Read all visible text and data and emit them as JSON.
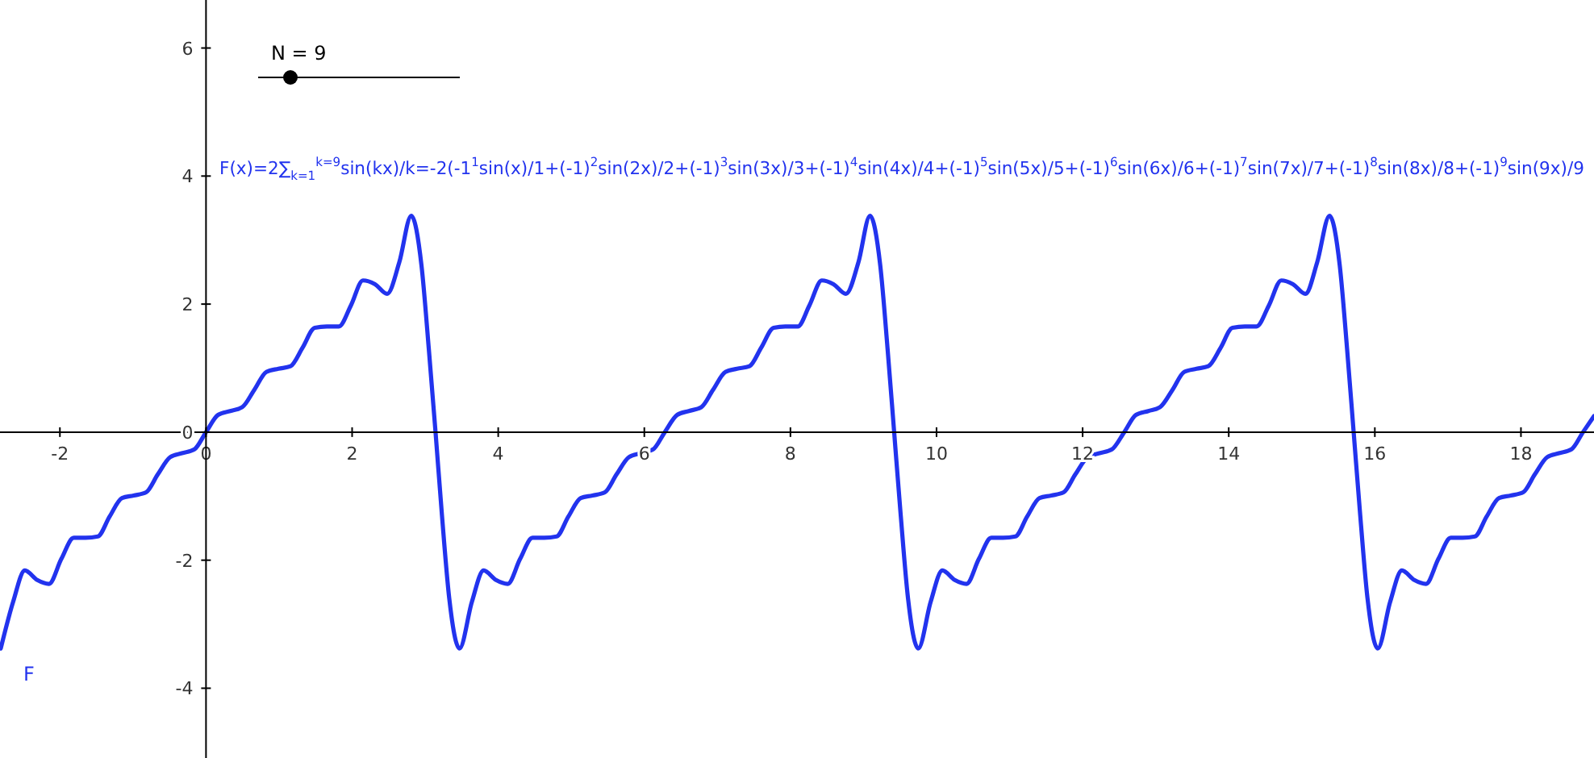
{
  "chart_data": {
    "type": "line",
    "xlim": [
      -2.82,
      19.0
    ],
    "ylim": [
      -5.09,
      6.75
    ],
    "xticks": [
      -2,
      0,
      2,
      4,
      6,
      8,
      10,
      12,
      14,
      16,
      18
    ],
    "yticks": [
      -4,
      -2,
      0,
      2,
      4,
      6
    ],
    "grid": false,
    "marker": "none",
    "line_style": "solid",
    "annotations": [
      "N = 9",
      "F(x)=2∑$_{k=1}$$^{k=9}$sin(kx)/k=-2(-1$^{1}$sin(x)/1+(-1)$^{2}$sin(2x)/2+(-1)$^{3}$sin(3x)/3+(-1)$^{4}$sin(4x)/4+(-1)$^{5}$sin(5x)/5+(-1)$^{6}$sin(6x)/6+(-1)$^{7}$sin(7x)/7+(-1)$^{8}$sin(8x)/8+(-1)$^{9}$sin(9x)/9"
    ],
    "series": [
      {
        "name": "F",
        "color": "#2233ee",
        "x": [
          -2.81,
          -2.64,
          -2.48,
          -2.31,
          -2.15,
          -1.98,
          -1.81,
          -1.65,
          -1.48,
          -1.32,
          -1.15,
          -0.99,
          -0.82,
          -0.66,
          -0.49,
          -0.33,
          -0.16,
          0,
          0.165,
          0.331,
          0.496,
          0.661,
          0.826,
          0.992,
          1.157,
          1.322,
          1.488,
          1.653,
          1.818,
          1.984,
          2.149,
          2.314,
          2.48,
          2.645,
          2.81,
          2.95,
          3.05,
          3.142,
          3.23,
          3.33,
          3.47,
          3.64,
          3.8,
          3.97,
          4.13,
          4.3,
          4.47,
          4.63,
          4.8,
          4.96,
          5.13,
          5.29,
          5.46,
          5.62,
          5.79,
          5.95,
          6.12,
          6.28,
          6.45,
          6.61,
          6.78,
          6.94,
          7.11,
          7.27,
          7.44,
          7.6,
          7.77,
          7.93,
          8.1,
          8.26,
          8.43,
          8.59,
          8.76,
          8.93,
          9.09,
          9.23,
          9.33,
          9.42,
          9.51,
          9.61,
          9.75,
          9.92,
          10.08,
          10.25,
          10.41,
          10.58,
          10.75,
          10.91,
          11.08,
          11.24,
          11.41,
          11.57,
          11.74,
          11.9,
          12.07,
          12.23,
          12.4,
          12.57,
          12.73,
          12.9,
          13.06,
          13.23,
          13.39,
          13.56,
          13.72,
          13.89,
          14.05,
          14.22,
          14.38,
          14.55,
          14.72,
          14.88,
          15.05,
          15.21,
          15.38,
          15.52,
          15.62,
          15.71,
          15.8,
          15.9,
          16.04,
          16.21,
          16.37,
          16.54,
          16.7,
          16.87,
          17.04,
          17.2,
          17.37,
          17.53,
          17.7,
          17.86,
          18.03,
          18.19,
          18.36,
          18.52,
          18.69,
          18.85,
          19.0
        ],
        "values": [
          -3.38,
          -2.65,
          -2.16,
          -2.31,
          -2.37,
          -1.98,
          -1.65,
          -1.65,
          -1.63,
          -1.32,
          -1.03,
          -0.99,
          -0.94,
          -0.66,
          -0.39,
          -0.33,
          -0.27,
          0,
          0.27,
          0.33,
          0.39,
          0.66,
          0.94,
          0.99,
          1.03,
          1.32,
          1.63,
          1.65,
          1.65,
          1.98,
          2.37,
          2.31,
          2.16,
          2.65,
          3.38,
          2.6,
          1.3,
          0,
          -1.3,
          -2.6,
          -3.38,
          -2.65,
          -2.16,
          -2.31,
          -2.37,
          -1.98,
          -1.65,
          -1.65,
          -1.63,
          -1.32,
          -1.03,
          -0.99,
          -0.94,
          -0.66,
          -0.39,
          -0.33,
          -0.27,
          0,
          0.27,
          0.33,
          0.39,
          0.66,
          0.94,
          0.99,
          1.03,
          1.32,
          1.63,
          1.65,
          1.65,
          1.98,
          2.37,
          2.31,
          2.16,
          2.65,
          3.38,
          2.6,
          1.3,
          0,
          -1.3,
          -2.6,
          -3.38,
          -2.65,
          -2.16,
          -2.31,
          -2.37,
          -1.98,
          -1.65,
          -1.65,
          -1.63,
          -1.32,
          -1.03,
          -0.99,
          -0.94,
          -0.66,
          -0.39,
          -0.33,
          -0.27,
          0,
          0.27,
          0.33,
          0.39,
          0.66,
          0.94,
          0.99,
          1.03,
          1.32,
          1.63,
          1.65,
          1.65,
          1.98,
          2.37,
          2.31,
          2.16,
          2.65,
          3.38,
          2.6,
          1.3,
          0,
          -1.3,
          -2.6,
          -3.38,
          -2.65,
          -2.16,
          -2.31,
          -2.37,
          -1.98,
          -1.65,
          -1.65,
          -1.63,
          -1.32,
          -1.03,
          -0.99,
          -0.94,
          -0.66,
          -0.39,
          -0.33,
          -0.27,
          0,
          0.25
        ]
      }
    ]
  }
}
